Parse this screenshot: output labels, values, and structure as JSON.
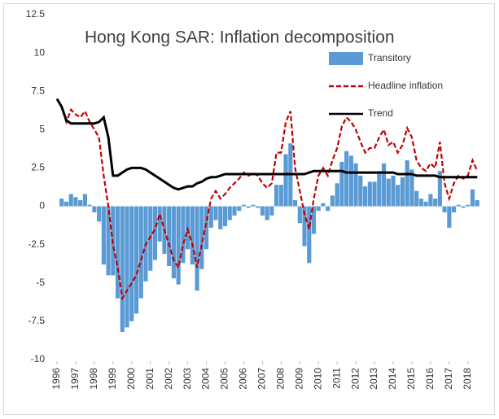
{
  "chart_data": {
    "type": "combo",
    "title": "Hong Kong SAR: Inflation decomposition",
    "x": [
      1996,
      1996.25,
      1996.5,
      1996.75,
      1997,
      1997.25,
      1997.5,
      1997.75,
      1998,
      1998.25,
      1998.5,
      1998.75,
      1999,
      1999.25,
      1999.5,
      1999.75,
      2000,
      2000.25,
      2000.5,
      2000.75,
      2001,
      2001.25,
      2001.5,
      2001.75,
      2002,
      2002.25,
      2002.5,
      2002.75,
      2003,
      2003.25,
      2003.5,
      2003.75,
      2004,
      2004.25,
      2004.5,
      2004.75,
      2005,
      2005.25,
      2005.5,
      2005.75,
      2006,
      2006.25,
      2006.5,
      2006.75,
      2007,
      2007.25,
      2007.5,
      2007.75,
      2008,
      2008.25,
      2008.5,
      2008.75,
      2009,
      2009.25,
      2009.5,
      2009.75,
      2010,
      2010.25,
      2010.5,
      2010.75,
      2011,
      2011.25,
      2011.5,
      2011.75,
      2012,
      2012.25,
      2012.5,
      2012.75,
      2013,
      2013.25,
      2013.5,
      2013.75,
      2014,
      2014.25,
      2014.5,
      2014.75,
      2015,
      2015.25,
      2015.5,
      2015.75,
      2016,
      2016.25,
      2016.5,
      2016.75,
      2017,
      2017.25,
      2017.5,
      2017.75,
      2018,
      2018.25,
      2018.5
    ],
    "series": [
      {
        "name": "Transitory",
        "type": "bar",
        "color": "#5b9bd5",
        "values": [
          0,
          0.5,
          0.3,
          0.8,
          0.6,
          0.4,
          0.8,
          0.1,
          -0.4,
          -1,
          -3.8,
          -4.5,
          -4.5,
          -6,
          -8.2,
          -7.9,
          -7.5,
          -7,
          -6,
          -4.9,
          -4.2,
          -3.5,
          -2.3,
          -3.1,
          -3.9,
          -4.7,
          -5.1,
          -3.7,
          -2.8,
          -3.8,
          -5.5,
          -4.1,
          -2.8,
          -1.4,
          -0.9,
          -1.5,
          -1.3,
          -0.9,
          -0.6,
          -0.3,
          0.1,
          -0.1,
          0.1,
          -0.1,
          -0.6,
          -0.9,
          -0.6,
          1.4,
          1.4,
          3.4,
          4.1,
          0.4,
          -1.1,
          -2.6,
          -3.7,
          -1.8,
          -0.3,
          0.2,
          -0.3,
          0.7,
          1.5,
          2.9,
          3.6,
          3.3,
          2.8,
          2,
          1.3,
          1.6,
          1.6,
          2.3,
          2.8,
          1.8,
          2,
          1.4,
          1.9,
          3,
          2.4,
          1,
          0.5,
          0.3,
          0.8,
          0.5,
          2.3,
          -0.4,
          -1.4,
          -0.4,
          0.1,
          -0.1,
          0.1,
          1.1,
          0.4
        ]
      },
      {
        "name": "Headline inflation",
        "type": "line",
        "line_style": "dashed",
        "color": "#c00000",
        "values": [
          7,
          6.5,
          5.5,
          6.3,
          6,
          5.8,
          6.2,
          5.5,
          5,
          4.5,
          2,
          0,
          -2.5,
          -4,
          -6,
          -5.5,
          -5,
          -4.5,
          -3.5,
          -2.5,
          -2,
          -1.5,
          -0.5,
          -1.5,
          -2.5,
          -3.5,
          -4,
          -2.5,
          -1.5,
          -2.5,
          -4,
          -2.5,
          -1,
          0.5,
          1,
          0.5,
          0.8,
          1.2,
          1.5,
          1.8,
          2.2,
          2,
          2.2,
          2,
          1.5,
          1.2,
          1.5,
          3.5,
          3.5,
          5.5,
          6.2,
          2.5,
          1,
          -0.5,
          -1.5,
          0.5,
          2,
          2.5,
          2,
          3,
          3.8,
          5.2,
          5.8,
          5.5,
          5,
          4.2,
          3.5,
          3.8,
          3.8,
          4.5,
          5,
          4,
          4.2,
          3.5,
          4,
          5.1,
          4.5,
          3,
          2.5,
          2.3,
          2.8,
          2.5,
          4.2,
          1.5,
          0.5,
          1.5,
          2,
          1.8,
          2,
          3,
          2.3
        ]
      },
      {
        "name": "Trend",
        "type": "line",
        "line_style": "solid",
        "color": "#000000",
        "values": [
          7,
          6.5,
          5.6,
          5.4,
          5.4,
          5.4,
          5.4,
          5.4,
          5.4,
          5.5,
          5.8,
          4.5,
          2,
          2,
          2.2,
          2.4,
          2.5,
          2.5,
          2.5,
          2.4,
          2.2,
          2,
          1.8,
          1.6,
          1.4,
          1.2,
          1.1,
          1.2,
          1.3,
          1.3,
          1.5,
          1.6,
          1.8,
          1.9,
          1.9,
          2,
          2.1,
          2.1,
          2.1,
          2.1,
          2.1,
          2.1,
          2.1,
          2.1,
          2.1,
          2.1,
          2.1,
          2.1,
          2.1,
          2.1,
          2.1,
          2.1,
          2.1,
          2.1,
          2.2,
          2.3,
          2.3,
          2.3,
          2.3,
          2.3,
          2.3,
          2.3,
          2.2,
          2.2,
          2.2,
          2.2,
          2.2,
          2.2,
          2.2,
          2.2,
          2.2,
          2.2,
          2.2,
          2.1,
          2.1,
          2.1,
          2.1,
          2,
          2,
          2,
          2,
          2,
          1.9,
          1.9,
          1.9,
          1.9,
          1.9,
          1.9,
          1.9,
          1.9,
          1.9
        ]
      }
    ],
    "xlim": [
      1996,
      2018.75
    ],
    "xticks": [
      1996,
      1997,
      1998,
      1999,
      2000,
      2001,
      2002,
      2003,
      2004,
      2005,
      2006,
      2007,
      2008,
      2009,
      2010,
      2011,
      2012,
      2013,
      2014,
      2015,
      2016,
      2017,
      2018
    ],
    "ylim": [
      -10,
      12.5
    ],
    "yticks": [
      -10,
      -7.5,
      -5,
      -2.5,
      0,
      2.5,
      5,
      7.5,
      10,
      12.5
    ],
    "grid": false
  }
}
